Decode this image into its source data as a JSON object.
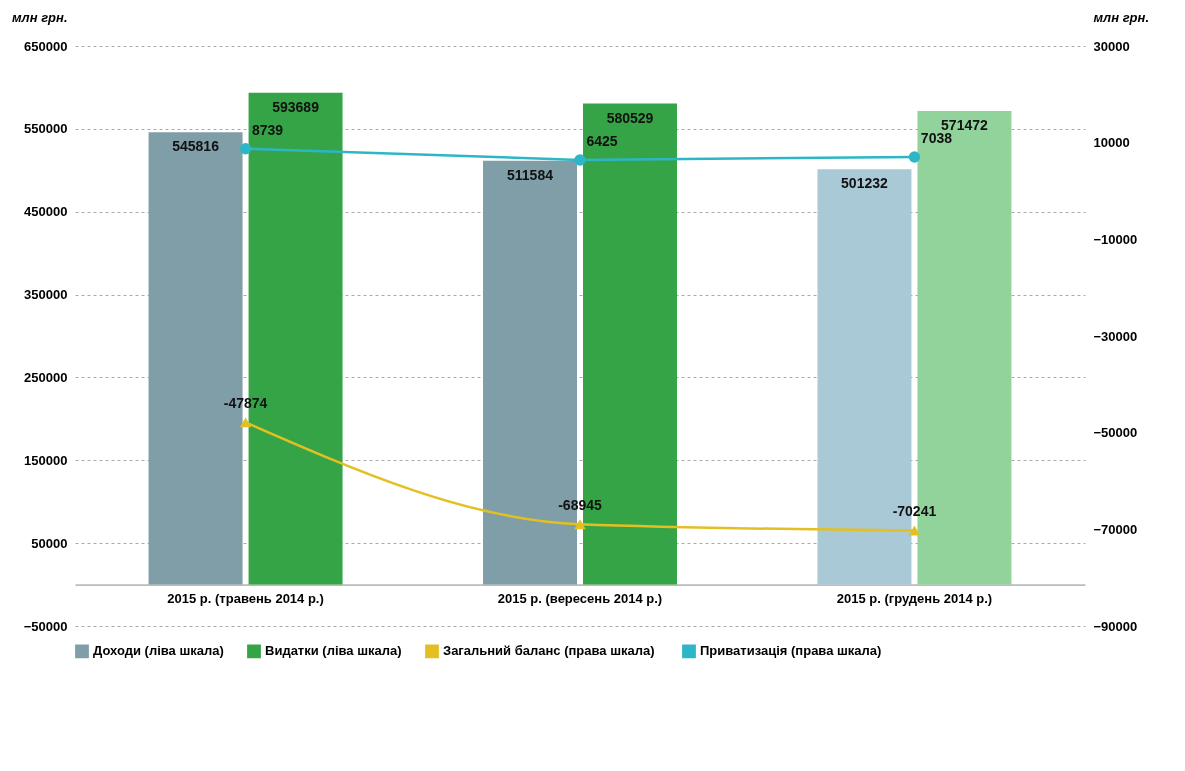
{
  "chart_data": {
    "type": "bar",
    "categories": [
      "2015 р. (травень 2014 р.)",
      "2015 р. (вересень 2014 р.)",
      "2015 р. (грудень 2014 р.)"
    ],
    "ylabel": "млн грн.",
    "y2label": "млн грн.",
    "ylim": [
      -50000,
      650000
    ],
    "yticks": [
      -50000,
      50000,
      150000,
      250000,
      350000,
      450000,
      550000,
      650000
    ],
    "y2lim": [
      -90000,
      30000
    ],
    "y2ticks": [
      -90000,
      -70000,
      -50000,
      -30000,
      -10000,
      10000,
      30000
    ],
    "grid": "y",
    "legend": "bottom",
    "data_labels": true,
    "series": [
      {
        "name": "Доходи (ліва шкала)",
        "color": "#7f9ea8",
        "colors": [
          "#7f9ea8",
          "#7f9ea8",
          "#a9c9d6"
        ],
        "values": [
          545816,
          511584,
          501232
        ]
      },
      {
        "name": "Видатки (ліва шкала)",
        "color": "#35a447",
        "colors": [
          "#35a447",
          "#35a447",
          "#92d39c"
        ],
        "values": [
          593689,
          580529,
          571472
        ]
      },
      {
        "name": "Загальний баланс  (права шкала)",
        "type": "line",
        "axis": "y2",
        "marker": "triangle",
        "color": "#e4bf22",
        "values": [
          -47874,
          -68945,
          -70241
        ]
      },
      {
        "name": "Приватизація (права шкала)",
        "type": "line",
        "axis": "y2",
        "marker": "circle",
        "color": "#2db6c6",
        "values": [
          8739,
          6425,
          7038
        ]
      }
    ]
  }
}
